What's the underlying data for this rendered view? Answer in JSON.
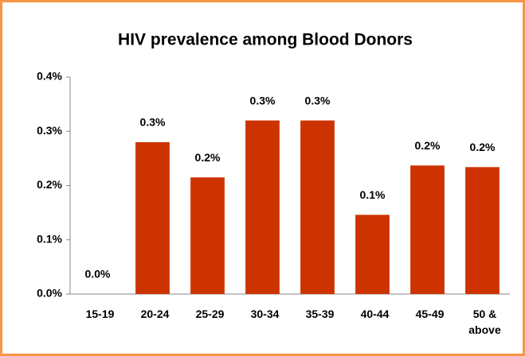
{
  "chart_data": {
    "type": "bar",
    "title": "HIV prevalence among Blood Donors",
    "categories": [
      "15-19",
      "20-24",
      "25-29",
      "30-34",
      "35-39",
      "40-44",
      "45-49",
      "50 & above"
    ],
    "values": [
      0,
      0.28,
      0.215,
      0.32,
      0.32,
      0.146,
      0.237,
      0.234
    ],
    "value_labels": [
      "0.0%",
      "0.3%",
      "0.2%",
      "0.3%",
      "0.3%",
      "0.1%",
      "0.2%",
      "0.2%"
    ],
    "color": "#cc3300",
    "ylim": [
      0,
      0.4
    ],
    "yticks": [
      {
        "value": 0,
        "label": "0.0%"
      },
      {
        "value": 0.1,
        "label": "0.1%"
      },
      {
        "value": 0.2,
        "label": "0.2%"
      },
      {
        "value": 0.3,
        "label": "0.3%"
      },
      {
        "value": 0.4,
        "label": "0.4%"
      }
    ],
    "grid": false
  }
}
